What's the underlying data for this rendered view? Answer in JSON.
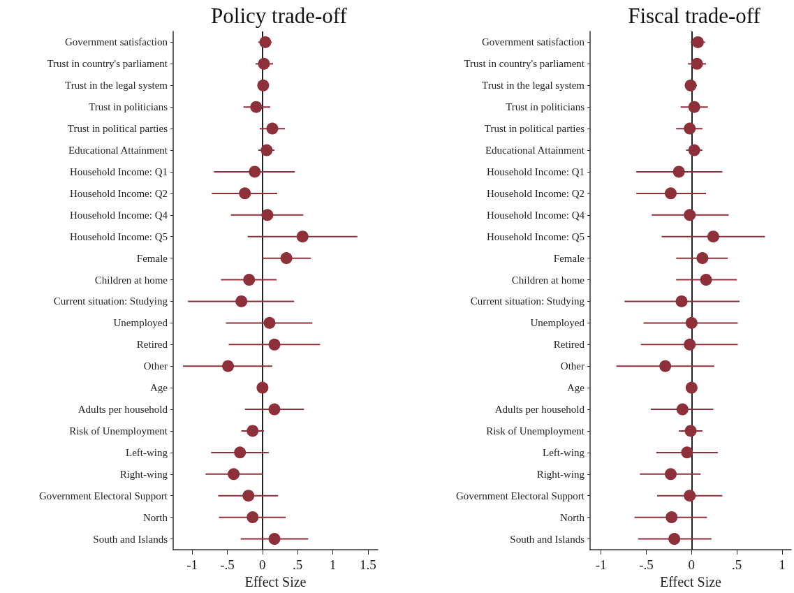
{
  "chart_data": [
    {
      "type": "scatter",
      "orientation": "horizontal",
      "title": "Policy trade-off",
      "xlabel": "Effect Size",
      "marker": "circle",
      "grid": false,
      "categories": [
        "Government satisfaction",
        "Trust in country's parliament",
        "Trust in the legal system",
        "Trust in politicians",
        "Trust in political parties",
        "Educational Attainment",
        "Household Income: Q1",
        "Household Income: Q2",
        "Household Income: Q4",
        "Household Income: Q5",
        "Female",
        "Children at home",
        "Current situation: Studying",
        "Unemployed",
        "Retired",
        "Other",
        "Age",
        "Adults per household",
        "Risk of Unemployment",
        "Left-wing",
        "Right-wing",
        "Government Electoral Support",
        "North",
        "South and Islands"
      ],
      "series": [
        {
          "color": "#8e3039",
          "values": [
            0.04,
            0.02,
            0.01,
            -0.09,
            0.14,
            0.06,
            -0.11,
            -0.25,
            0.07,
            0.57,
            0.34,
            -0.19,
            -0.3,
            0.1,
            0.17,
            -0.49,
            0,
            0.17,
            -0.14,
            -0.32,
            -0.41,
            -0.2,
            -0.14,
            0.17
          ],
          "errors": [
            [
              -0.06,
              0.13
            ],
            [
              -0.1,
              0.15
            ],
            [
              -0.06,
              0.08
            ],
            [
              -0.27,
              0.11
            ],
            [
              -0.04,
              0.32
            ],
            [
              -0.06,
              0.17
            ],
            [
              -0.69,
              0.46
            ],
            [
              -0.72,
              0.21
            ],
            [
              -0.45,
              0.58
            ],
            [
              -0.21,
              1.35
            ],
            [
              0,
              0.69
            ],
            [
              -0.59,
              0.2
            ],
            [
              -1.06,
              0.45
            ],
            [
              -0.52,
              0.71
            ],
            [
              -0.48,
              0.82
            ],
            [
              -1.13,
              0.14
            ],
            null,
            [
              -0.25,
              0.59
            ],
            [
              -0.3,
              0.02
            ],
            [
              -0.73,
              0.09
            ],
            [
              -0.81,
              0
            ],
            [
              -0.63,
              0.22
            ],
            [
              -0.62,
              0.33
            ],
            [
              -0.31,
              0.65
            ]
          ]
        }
      ],
      "ref_lines": [
        {
          "axis": "x",
          "value": 0,
          "color": "#222222"
        }
      ],
      "xlim": [
        -1.27,
        1.64
      ],
      "xticks": [
        {
          "value": -1,
          "label": "-1"
        },
        {
          "value": -0.5,
          "label": "-.5"
        },
        0,
        {
          "value": 0.5,
          "label": ".5"
        },
        1,
        1.5
      ]
    },
    {
      "type": "scatter",
      "orientation": "horizontal",
      "title": "Fiscal trade-off",
      "xlabel": "Effect Size",
      "marker": "circle",
      "grid": false,
      "categories": [
        "Government satisfaction",
        "Trust in country's parliament",
        "Trust in the legal system",
        "Trust in politicians",
        "Trust in political parties",
        "Educational Attainment",
        "Household Income: Q1",
        "Household Income: Q2",
        "Household Income: Q4",
        "Household Income: Q5",
        "Female",
        "Children at home",
        "Current situation: Studying",
        "Unemployed",
        "Retired",
        "Other",
        "Age",
        "Adults per household",
        "Risk of Unemployment",
        "Left-wing",
        "Right-wing",
        "Government Electoral Support",
        "North",
        "South and Islands"
      ],
      "series": [
        {
          "color": "#8e3039",
          "values": [
            0.07,
            0.06,
            -0.01,
            0.03,
            -0.02,
            0.03,
            -0.14,
            -0.23,
            -0.02,
            0.24,
            0.12,
            0.16,
            -0.11,
            0,
            -0.02,
            -0.29,
            0,
            -0.1,
            -0.01,
            -0.05,
            -0.23,
            -0.02,
            -0.22,
            -0.19
          ],
          "errors": [
            [
              -0.01,
              0.15
            ],
            [
              -0.04,
              0.16
            ],
            [
              -0.07,
              0.06
            ],
            [
              -0.12,
              0.18
            ],
            [
              -0.17,
              0.12
            ],
            [
              -0.06,
              0.12
            ],
            [
              -0.61,
              0.34
            ],
            [
              -0.61,
              0.16
            ],
            [
              -0.44,
              0.41
            ],
            [
              -0.33,
              0.81
            ],
            [
              -0.17,
              0.4
            ],
            [
              -0.17,
              0.5
            ],
            [
              -0.74,
              0.53
            ],
            [
              -0.53,
              0.51
            ],
            [
              -0.56,
              0.51
            ],
            [
              -0.83,
              0.25
            ],
            null,
            [
              -0.45,
              0.24
            ],
            [
              -0.14,
              0.12
            ],
            [
              -0.39,
              0.29
            ],
            [
              -0.57,
              0.1
            ],
            [
              -0.38,
              0.34
            ],
            [
              -0.63,
              0.17
            ],
            [
              -0.59,
              0.22
            ]
          ]
        }
      ],
      "ref_lines": [
        {
          "axis": "x",
          "value": 0,
          "color": "#222222"
        }
      ],
      "xlim": [
        -1.12,
        1.1
      ],
      "xticks": [
        {
          "value": -1,
          "label": "-1"
        },
        {
          "value": -0.5,
          "label": "-.5"
        },
        0,
        {
          "value": 0.5,
          "label": ".5"
        },
        1
      ]
    }
  ]
}
